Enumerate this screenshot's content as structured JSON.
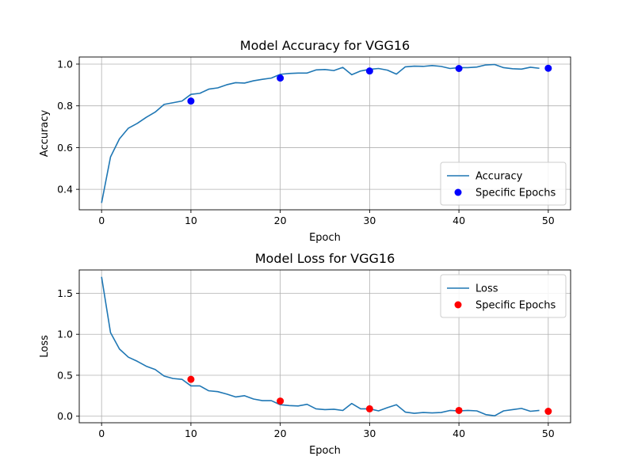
{
  "chart_data": [
    {
      "type": "line",
      "title": "Model Accuracy for VGG16",
      "xlabel": "Epoch",
      "ylabel": "Accuracy",
      "xlim": [
        -2.5,
        52.5
      ],
      "ylim": [
        0.302,
        1.034
      ],
      "xticks": [
        0,
        10,
        20,
        30,
        40,
        50
      ],
      "yticks": [
        0.4,
        0.6,
        0.8,
        1.0
      ],
      "ytick_labels": [
        "0.4",
        "0.6",
        "0.8",
        "1.0"
      ],
      "grid": true,
      "legend_position": "lower-right",
      "series": [
        {
          "name": "Accuracy",
          "kind": "line",
          "color": "#1f77b4",
          "x": [
            0,
            1,
            2,
            3,
            4,
            5,
            6,
            7,
            8,
            9,
            10,
            11,
            12,
            13,
            14,
            15,
            16,
            17,
            18,
            19,
            20,
            21,
            22,
            23,
            24,
            25,
            26,
            27,
            28,
            29,
            30,
            31,
            32,
            33,
            34,
            35,
            36,
            37,
            38,
            39,
            40,
            41,
            42,
            43,
            44,
            45,
            46,
            47,
            48,
            49
          ],
          "y": [
            0.335,
            0.555,
            0.642,
            0.693,
            0.716,
            0.745,
            0.77,
            0.807,
            0.815,
            0.823,
            0.855,
            0.86,
            0.88,
            0.886,
            0.901,
            0.911,
            0.909,
            0.92,
            0.927,
            0.933,
            0.951,
            0.955,
            0.957,
            0.957,
            0.972,
            0.974,
            0.969,
            0.984,
            0.949,
            0.967,
            0.975,
            0.979,
            0.971,
            0.952,
            0.987,
            0.99,
            0.989,
            0.993,
            0.989,
            0.979,
            0.983,
            0.983,
            0.986,
            0.996,
            0.998,
            0.983,
            0.978,
            0.976,
            0.985,
            0.98
          ]
        },
        {
          "name": "Specific Epochs",
          "kind": "scatter",
          "color": "#0000ff",
          "x": [
            10,
            20,
            30,
            40,
            50
          ],
          "y": [
            0.823,
            0.933,
            0.967,
            0.979,
            0.98
          ]
        }
      ]
    },
    {
      "type": "line",
      "title": "Model Loss for VGG16",
      "xlabel": "Epoch",
      "ylabel": "Loss",
      "xlim": [
        -2.5,
        52.5
      ],
      "ylim": [
        -0.08,
        1.785
      ],
      "xticks": [
        0,
        10,
        20,
        30,
        40,
        50
      ],
      "yticks": [
        0.0,
        0.5,
        1.0,
        1.5
      ],
      "ytick_labels": [
        "0.0",
        "0.5",
        "1.0",
        "1.5"
      ],
      "grid": true,
      "legend_position": "upper-right",
      "series": [
        {
          "name": "Loss",
          "kind": "line",
          "color": "#1f77b4",
          "x": [
            0,
            1,
            2,
            3,
            4,
            5,
            6,
            7,
            8,
            9,
            10,
            11,
            12,
            13,
            14,
            15,
            16,
            17,
            18,
            19,
            20,
            21,
            22,
            23,
            24,
            25,
            26,
            27,
            28,
            29,
            30,
            31,
            32,
            33,
            34,
            35,
            36,
            37,
            38,
            39,
            40,
            41,
            42,
            43,
            44,
            45,
            46,
            47,
            48,
            49
          ],
          "y": [
            1.7,
            1.02,
            0.82,
            0.72,
            0.67,
            0.61,
            0.57,
            0.49,
            0.46,
            0.45,
            0.37,
            0.37,
            0.31,
            0.3,
            0.27,
            0.235,
            0.25,
            0.21,
            0.19,
            0.19,
            0.14,
            0.13,
            0.125,
            0.145,
            0.09,
            0.08,
            0.085,
            0.07,
            0.155,
            0.09,
            0.09,
            0.065,
            0.105,
            0.14,
            0.05,
            0.035,
            0.045,
            0.04,
            0.045,
            0.07,
            0.065,
            0.07,
            0.065,
            0.02,
            0.005,
            0.065,
            0.08,
            0.095,
            0.06,
            0.07
          ]
        },
        {
          "name": "Specific Epochs",
          "kind": "scatter",
          "color": "#ff0000",
          "x": [
            10,
            20,
            30,
            40,
            50
          ],
          "y": [
            0.45,
            0.185,
            0.09,
            0.07,
            0.06
          ]
        }
      ]
    }
  ]
}
